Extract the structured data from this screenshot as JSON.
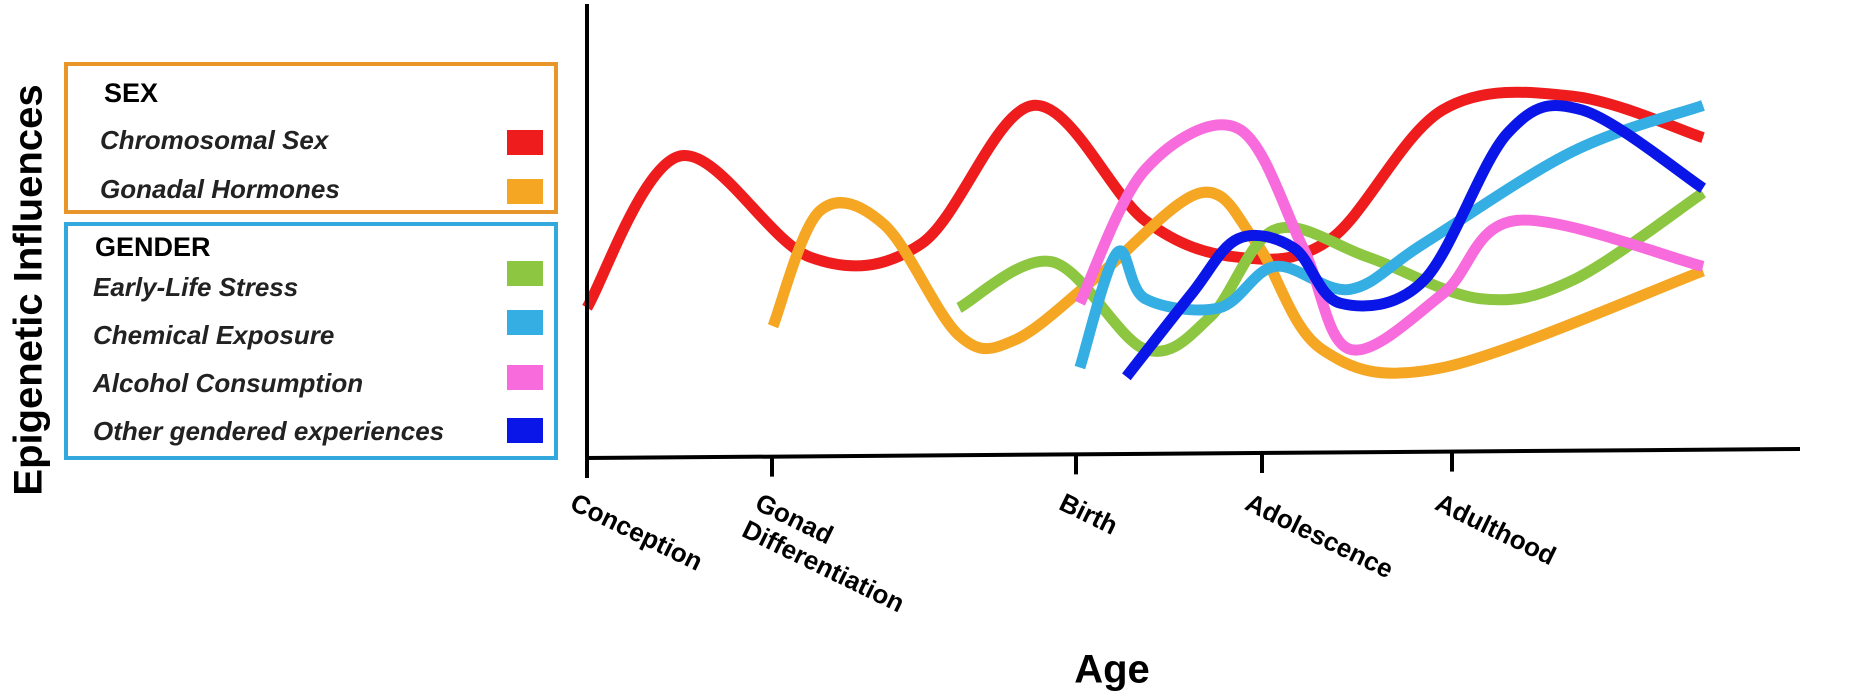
{
  "chart_data": {
    "type": "line",
    "xlabel": "Age",
    "ylabel": "Epigenetic Influences",
    "x_ticks": [
      "Conception",
      "Gonad Differentiation",
      "Birth",
      "Adolescence",
      "Adulthood"
    ],
    "legend": {
      "groups": [
        {
          "title": "SEX",
          "border_color": "#e8952a",
          "entries": [
            {
              "label": "Chromosomal Sex",
              "color": "#ee1c1c"
            },
            {
              "label": "Gonadal Hormones",
              "color": "#f5a623"
            }
          ]
        },
        {
          "title": "GENDER",
          "border_color": "#33a8dc",
          "entries": [
            {
              "label": "Early-Life Stress",
              "color": "#8dc641"
            },
            {
              "label": "Chemical Exposure",
              "color": "#34aee3"
            },
            {
              "label": "Alcohol Consumption",
              "color": "#f76bdc"
            },
            {
              "label": "Other gendered experiences",
              "color": "#0a15e8"
            }
          ]
        }
      ]
    },
    "series": [
      {
        "name": "Chromosomal Sex",
        "color": "#ee1c1c",
        "x": [
          0.0,
          0.5,
          1.2,
          1.8,
          2.4,
          3.0,
          3.5,
          4.0,
          4.6,
          5.3,
          6.0
        ],
        "y": [
          3.2,
          6.5,
          4.3,
          4.6,
          7.6,
          5.1,
          4.3,
          4.7,
          7.5,
          7.8,
          6.9
        ]
      },
      {
        "name": "Gonadal Hormones",
        "color": "#f5a623",
        "x": [
          1.0,
          1.25,
          1.6,
          2.0,
          2.3,
          2.75,
          3.3,
          3.6,
          3.95,
          4.6,
          6.0
        ],
        "y": [
          2.8,
          5.3,
          5.0,
          2.6,
          2.5,
          3.9,
          5.7,
          4.6,
          2.3,
          1.9,
          4.0
        ]
      },
      {
        "name": "Early-Life Stress",
        "color": "#8dc641",
        "x": [
          2.0,
          2.5,
          3.0,
          3.35,
          3.7,
          4.2,
          4.8,
          5.3,
          6.0
        ],
        "y": [
          3.2,
          4.2,
          2.3,
          3.0,
          4.9,
          4.3,
          3.4,
          3.8,
          5.7
        ]
      },
      {
        "name": "Chemical Exposure",
        "color": "#34aee3",
        "x": [
          2.65,
          2.85,
          3.0,
          3.4,
          3.7,
          4.1,
          4.5,
          5.3,
          6.0
        ],
        "y": [
          1.9,
          4.4,
          3.4,
          3.2,
          4.1,
          3.6,
          4.6,
          6.6,
          7.6
        ]
      },
      {
        "name": "Alcohol Consumption",
        "color": "#f76bdc",
        "x": [
          2.65,
          3.0,
          3.5,
          3.85,
          4.1,
          4.6,
          5.0,
          6.0
        ],
        "y": [
          3.3,
          6.2,
          7.1,
          4.5,
          2.3,
          3.5,
          5.1,
          4.1
        ]
      },
      {
        "name": "Other gendered experiences",
        "color": "#0a15e8",
        "x": [
          2.9,
          3.25,
          3.5,
          3.8,
          4.05,
          4.5,
          4.95,
          5.35,
          6.0
        ],
        "y": [
          1.7,
          3.5,
          4.7,
          4.5,
          3.3,
          3.8,
          7.0,
          7.5,
          5.8
        ]
      }
    ]
  }
}
